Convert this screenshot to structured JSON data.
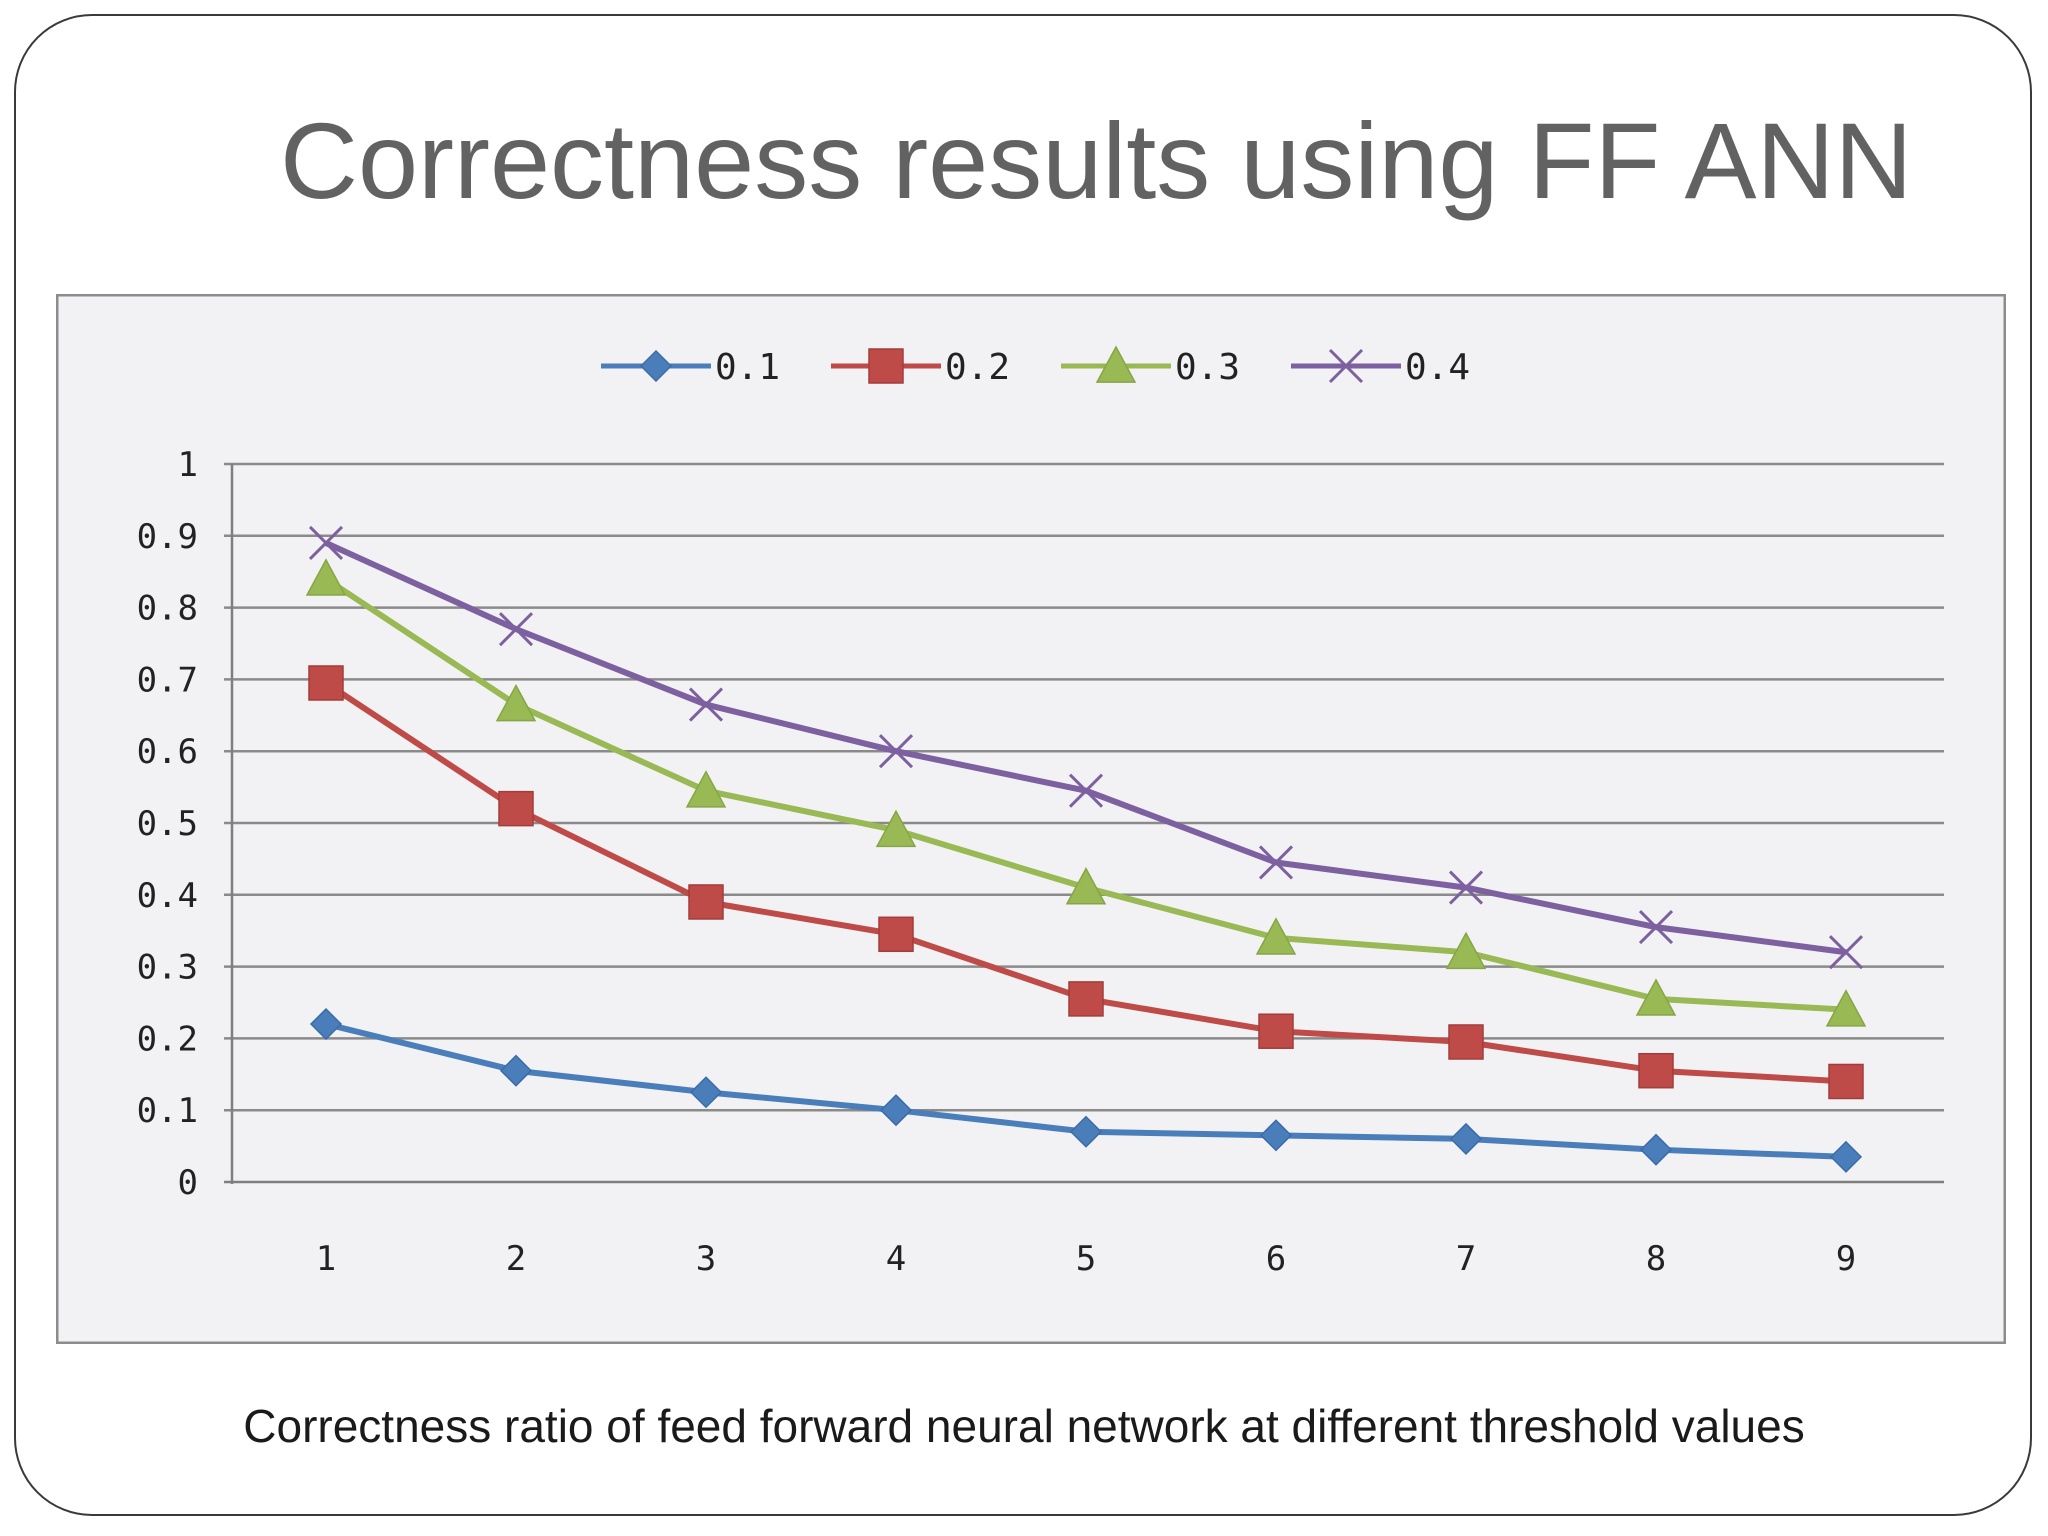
{
  "slide": {
    "title": "Correctness results using FF ANN",
    "caption": "Correctness ratio of feed forward neural network at different threshold values"
  },
  "chart_data": {
    "type": "line",
    "title": "",
    "xlabel": "",
    "ylabel": "",
    "categories": [
      "1",
      "2",
      "3",
      "4",
      "5",
      "6",
      "7",
      "8",
      "9"
    ],
    "y_ticks": [
      "0",
      "0.1",
      "0.2",
      "0.3",
      "0.4",
      "0.5",
      "0.6",
      "0.7",
      "0.8",
      "0.9",
      "1"
    ],
    "ylim": [
      0,
      1
    ],
    "grid": true,
    "legend_position": "top",
    "series": [
      {
        "name": "0.1",
        "color": "#4a7ebb",
        "marker": "diamond",
        "values": [
          0.22,
          0.155,
          0.125,
          0.1,
          0.07,
          0.065,
          0.06,
          0.045,
          0.035
        ]
      },
      {
        "name": "0.2",
        "color": "#be4b48",
        "marker": "square",
        "values": [
          0.695,
          0.52,
          0.39,
          0.345,
          0.255,
          0.21,
          0.195,
          0.155,
          0.14
        ]
      },
      {
        "name": "0.3",
        "color": "#98b954",
        "marker": "triangle",
        "values": [
          0.84,
          0.665,
          0.545,
          0.49,
          0.41,
          0.34,
          0.32,
          0.255,
          0.24
        ]
      },
      {
        "name": "0.4",
        "color": "#7d60a0",
        "marker": "x",
        "values": [
          0.89,
          0.77,
          0.665,
          0.6,
          0.545,
          0.445,
          0.41,
          0.355,
          0.32
        ]
      }
    ]
  }
}
